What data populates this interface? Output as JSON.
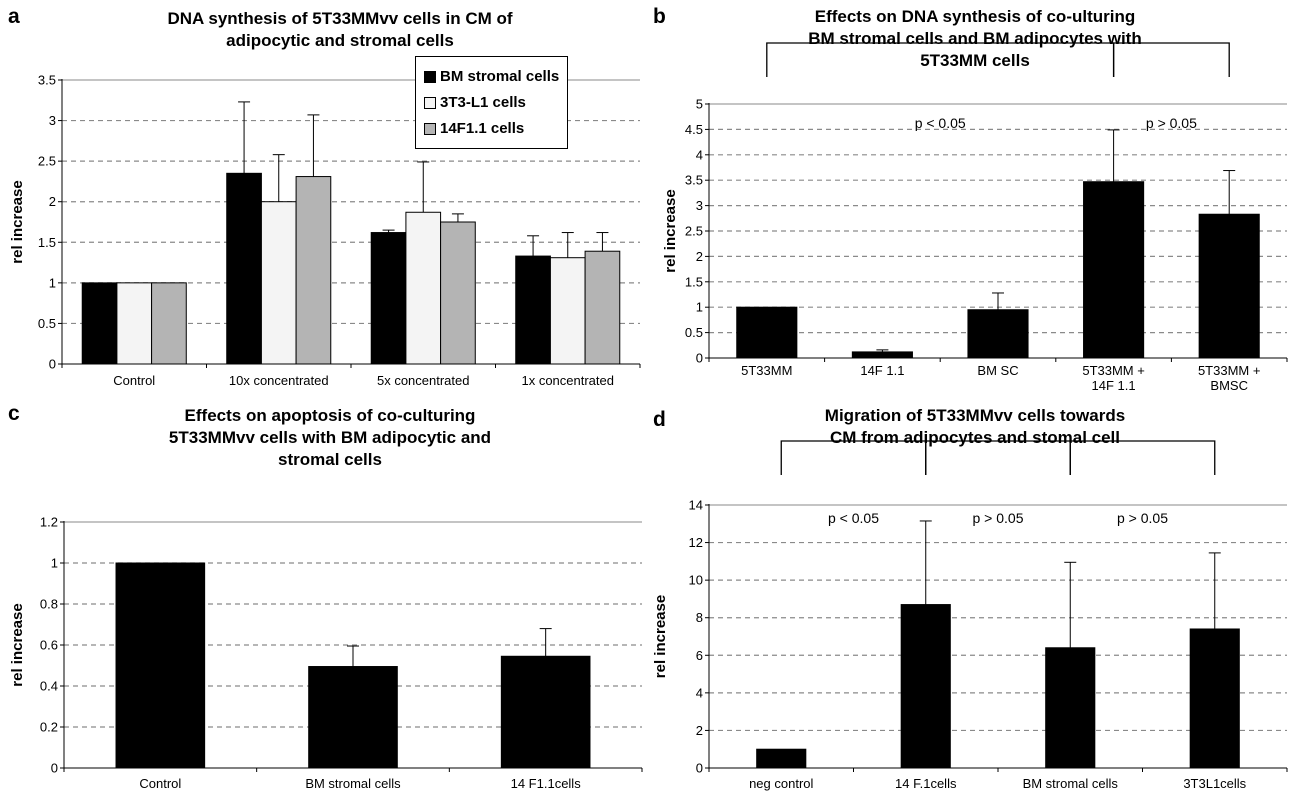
{
  "panels": {
    "a": {
      "letter": "a",
      "title_lines": [
        "DNA synthesis of 5T33MMvv cells in CM of",
        "adipocytic and stromal cells"
      ]
    },
    "b": {
      "letter": "b",
      "title_lines": [
        "Effects on DNA synthesis of co-ulturing",
        "BM stromal cells and BM adipocytes with",
        "5T33MM cells"
      ]
    },
    "c": {
      "letter": "c",
      "title_lines": [
        "Effects on apoptosis of co-culturing",
        "5T33MMvv cells with BM adipocytic and",
        "stromal cells"
      ]
    },
    "d": {
      "letter": "d",
      "title_lines": [
        "Migration of 5T33MMvv cells towards",
        "CM from adipocytes and stomal cell"
      ]
    }
  },
  "colors": {
    "black": "#000000",
    "light": "#f4f4f4",
    "gray": "#b4b4b4",
    "grid": "#8a8a8a"
  },
  "chart_data": [
    {
      "panel": "a",
      "type": "bar",
      "title": "DNA synthesis of 5T33MMvv cells in CM of adipocytic and stromal cells",
      "ylabel": "rel increase",
      "xlabel": "",
      "categories": [
        "Control",
        "10x concentrated",
        "5x concentrated",
        "1x concentrated"
      ],
      "series": [
        {
          "name": "BM stromal cells",
          "color": "#000000",
          "values": [
            1.0,
            2.35,
            1.62,
            1.33
          ],
          "errors": [
            0,
            0.88,
            0.03,
            0.25
          ]
        },
        {
          "name": "3T3-L1 cells",
          "color": "#f4f4f4",
          "values": [
            1.0,
            2.0,
            1.87,
            1.31
          ],
          "errors": [
            0,
            0.58,
            0.62,
            0.31
          ]
        },
        {
          "name": "14F1.1 cells",
          "color": "#b4b4b4",
          "values": [
            1.0,
            2.31,
            1.75,
            1.39
          ],
          "errors": [
            0,
            0.76,
            0.1,
            0.23
          ]
        }
      ],
      "ylim": [
        0,
        3.5
      ],
      "yticks": [
        "0",
        "0.5",
        "1",
        "1.5",
        "2",
        "2.5",
        "3",
        "3.5"
      ],
      "grid": true,
      "legend": "top-right"
    },
    {
      "panel": "b",
      "type": "bar",
      "title": "Effects on DNA synthesis of co-ulturing BM stromal cells and BM adipocytes with 5T33MM cells",
      "ylabel": "rel increase",
      "xlabel": "",
      "categories": [
        [
          "5T33MM"
        ],
        [
          "14F 1.1"
        ],
        [
          "BM SC"
        ],
        [
          "5T33MM +",
          "14F  1.1"
        ],
        [
          "5T33MM +",
          "BMSC"
        ]
      ],
      "series": [
        {
          "color": "#000000",
          "values": [
            1.0,
            0.12,
            0.95,
            3.47,
            2.83
          ],
          "errors": [
            0,
            0.04,
            0.33,
            1.02,
            0.86
          ]
        }
      ],
      "ylim": [
        0,
        5
      ],
      "yticks": [
        "0",
        "0.5",
        "1",
        "1.5",
        "2",
        "2.5",
        "3",
        "3.5",
        "4",
        "4.5",
        "5"
      ],
      "grid": true,
      "annotations": [
        {
          "text": "p < 0.05",
          "from": 0,
          "to": 3
        },
        {
          "text": "p > 0.05",
          "from": 3,
          "to": 4
        }
      ]
    },
    {
      "panel": "c",
      "type": "bar",
      "title": "Effects on apoptosis of co-culturing 5T33MMvv cells with BM adipocytic and stromal cells",
      "ylabel": "rel increase",
      "xlabel": "",
      "categories": [
        "Control",
        "BM stromal cells",
        "14 F1.1cells"
      ],
      "series": [
        {
          "color": "#000000",
          "values": [
            1.0,
            0.495,
            0.545
          ],
          "errors": [
            0,
            0.1,
            0.135
          ]
        }
      ],
      "ylim": [
        0,
        1.2
      ],
      "yticks": [
        "0",
        "0.2",
        "0.4",
        "0.6",
        "0.8",
        "1",
        "1.2"
      ],
      "grid": true
    },
    {
      "panel": "d",
      "type": "bar",
      "title": "Migration of 5T33MMvv cells towards CM from adipocytes and stomal cell",
      "ylabel": "rel increase",
      "xlabel": "",
      "categories": [
        "neg control",
        "14 F.1cells",
        "BM stromal cells",
        "3T3L1cells"
      ],
      "series": [
        {
          "color": "#000000",
          "values": [
            1.0,
            8.7,
            6.4,
            7.4
          ],
          "errors": [
            0,
            4.45,
            4.55,
            4.05
          ]
        }
      ],
      "ylim": [
        0,
        14
      ],
      "yticks": [
        "0",
        "2",
        "4",
        "6",
        "8",
        "10",
        "12",
        "14"
      ],
      "grid": true,
      "annotations": [
        {
          "text": "p < 0.05",
          "from": 0,
          "to": 1
        },
        {
          "text": "p > 0.05",
          "from": 1,
          "to": 2
        },
        {
          "text": "p > 0.05",
          "from": 2,
          "to": 3
        }
      ]
    }
  ]
}
